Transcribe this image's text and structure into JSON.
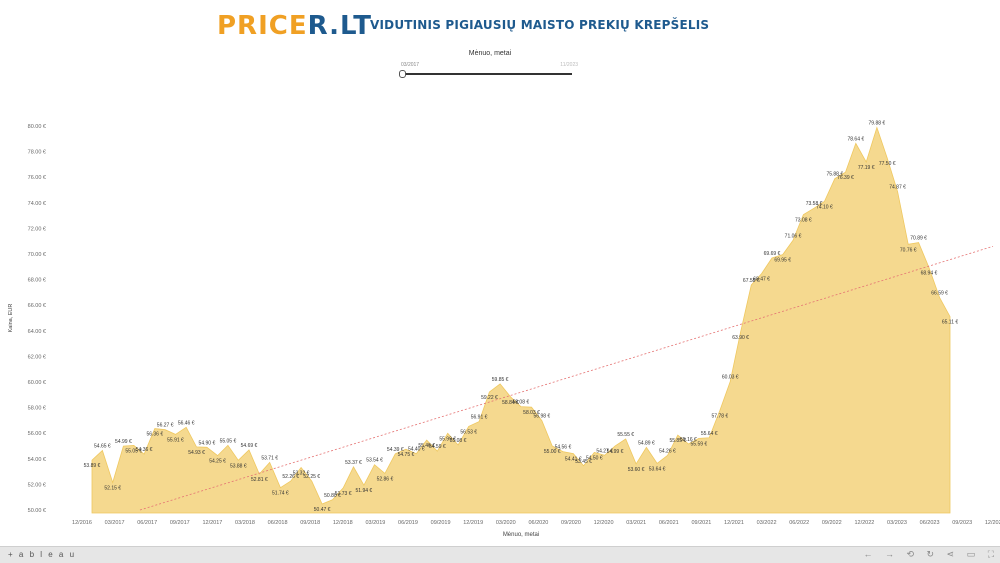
{
  "header": {
    "logo_part1": "PRICE",
    "logo_part2": "R.LT",
    "subtitle": "VIDUTINIS PIGIAUSIŲ MAISTO PREKIŲ KREPŠELIS"
  },
  "filter": {
    "title": "Mėnuo, metai",
    "start_label": "03/2017",
    "end_label": "11/2023",
    "position": 0
  },
  "footer": {
    "brand": "+ a b l e a u",
    "icons": [
      "undo-icon",
      "redo-icon",
      "revert-icon",
      "refresh-icon",
      "share-icon",
      "download-icon",
      "fullscreen-icon"
    ]
  },
  "colors": {
    "area": "#f5d98f",
    "area_line": "#efc860",
    "trend": "#e57373",
    "axis_text": "#666666"
  },
  "chart_data": {
    "type": "area",
    "xlabel": "Mėnuo, metai",
    "ylabel": "Kaina, EUR",
    "ylim": [
      50,
      81
    ],
    "yticks": [
      "50.00 €",
      "52.00 €",
      "54.00 €",
      "56.00 €",
      "58.00 €",
      "60.00 €",
      "62.00 €",
      "64.00 €",
      "66.00 €",
      "68.00 €",
      "70.00 €",
      "72.00 €",
      "74.00 €",
      "76.00 €",
      "78.00 €",
      "80.00 €"
    ],
    "xticks": [
      "12/2016",
      "03/2017",
      "06/2017",
      "09/2017",
      "12/2017",
      "03/2018",
      "06/2018",
      "09/2018",
      "12/2018",
      "03/2019",
      "06/2019",
      "09/2019",
      "12/2019",
      "03/2020",
      "06/2020",
      "09/2020",
      "12/2020",
      "03/2021",
      "06/2021",
      "09/2021",
      "12/2021",
      "03/2022",
      "06/2022",
      "09/2022",
      "12/2022",
      "03/2023",
      "06/2023",
      "09/2023",
      "12/2023"
    ],
    "trend": {
      "start": 49.5,
      "end": 70.6
    },
    "points": [
      {
        "x": 0,
        "value": 53.89,
        "label": "53.89 €"
      },
      {
        "x": 0.33,
        "value": 54.65,
        "label": "54.65 €"
      },
      {
        "x": 0.66,
        "value": 52.15,
        "label": "52.15 €"
      },
      {
        "x": 1.0,
        "value": 54.99,
        "label": "54.99 €"
      },
      {
        "x": 1.33,
        "value": 55.05,
        "label": "55.05 €"
      },
      {
        "x": 1.66,
        "value": 54.36,
        "label": "54.36 €"
      },
      {
        "x": 2.0,
        "value": 56.36,
        "label": "56.36 €"
      },
      {
        "x": 2.33,
        "value": 56.27,
        "label": "56.27 €"
      },
      {
        "x": 2.66,
        "value": 55.91,
        "label": "55.91 €"
      },
      {
        "x": 3.0,
        "value": 56.46,
        "label": "56.46 €"
      },
      {
        "x": 3.33,
        "value": 54.93,
        "label": "54.93 €"
      },
      {
        "x": 3.66,
        "value": 54.9,
        "label": "54.90 €"
      },
      {
        "x": 4.0,
        "value": 54.25,
        "label": "54.25 €"
      },
      {
        "x": 4.33,
        "value": 55.05,
        "label": "55.05 €"
      },
      {
        "x": 4.66,
        "value": 53.88,
        "label": "53.88 €"
      },
      {
        "x": 5.0,
        "value": 54.69,
        "label": "54.69 €"
      },
      {
        "x": 5.33,
        "value": 52.81,
        "label": "52.81 €"
      },
      {
        "x": 5.66,
        "value": 53.71,
        "label": "53.71 €"
      },
      {
        "x": 6.0,
        "value": 51.74,
        "label": "51.74 €"
      },
      {
        "x": 6.33,
        "value": 52.26,
        "label": "52.26 €"
      },
      {
        "x": 6.66,
        "value": 53.32,
        "label": "53.32 €"
      },
      {
        "x": 7.0,
        "value": 52.25,
        "label": "52.25 €"
      },
      {
        "x": 7.33,
        "value": 50.47,
        "label": "50.47 €"
      },
      {
        "x": 7.66,
        "value": 50.8,
        "label": "50.80 €"
      },
      {
        "x": 8.0,
        "value": 51.73,
        "label": "51.73 €"
      },
      {
        "x": 8.33,
        "value": 53.37,
        "label": "53.37 €"
      },
      {
        "x": 8.66,
        "value": 51.94,
        "label": "51.94 €"
      },
      {
        "x": 9.0,
        "value": 53.54,
        "label": "53.54 €"
      },
      {
        "x": 9.33,
        "value": 52.86,
        "label": "52.86 €"
      },
      {
        "x": 9.66,
        "value": 54.39,
        "label": "54.39 €"
      },
      {
        "x": 10.0,
        "value": 54.75,
        "label": "54.75 €"
      },
      {
        "x": 10.33,
        "value": 54.4,
        "label": "54.40 €"
      },
      {
        "x": 10.66,
        "value": 55.46,
        "label": "55.46 €"
      },
      {
        "x": 11.0,
        "value": 54.59,
        "label": "54.59 €"
      },
      {
        "x": 11.33,
        "value": 55.99,
        "label": "55.99 €"
      },
      {
        "x": 11.66,
        "value": 55.08,
        "label": "55.08 €"
      },
      {
        "x": 12.0,
        "value": 56.53,
        "label": "56.53 €"
      },
      {
        "x": 12.33,
        "value": 56.91,
        "label": "56.91 €"
      },
      {
        "x": 12.66,
        "value": 59.22,
        "label": "59.22 €"
      },
      {
        "x": 13.0,
        "value": 59.85,
        "label": "59.85 €"
      },
      {
        "x": 13.33,
        "value": 58.84,
        "label": "58.84 €"
      },
      {
        "x": 13.66,
        "value": 58.08,
        "label": "58.08 €"
      },
      {
        "x": 14.0,
        "value": 58.03,
        "label": "58.03 €"
      },
      {
        "x": 14.33,
        "value": 56.98,
        "label": "56.98 €"
      },
      {
        "x": 14.66,
        "value": 55.0,
        "label": "55.00 €"
      },
      {
        "x": 15.0,
        "value": 54.56,
        "label": "54.56 €"
      },
      {
        "x": 15.33,
        "value": 54.41,
        "label": "54.41 €"
      },
      {
        "x": 15.66,
        "value": 53.45,
        "label": "53.45 €"
      },
      {
        "x": 16.0,
        "value": 54.5,
        "label": "54.50 €"
      },
      {
        "x": 16.33,
        "value": 54.27,
        "label": "54.27 €"
      },
      {
        "x": 16.66,
        "value": 54.99,
        "label": "54.99 €"
      },
      {
        "x": 17.0,
        "value": 55.55,
        "label": "55.55 €"
      },
      {
        "x": 17.33,
        "value": 53.6,
        "label": "53.60 €"
      },
      {
        "x": 17.66,
        "value": 54.89,
        "label": "54.89 €"
      },
      {
        "x": 18.0,
        "value": 53.64,
        "label": "53.64 €"
      },
      {
        "x": 18.33,
        "value": 54.26,
        "label": "54.26 €"
      },
      {
        "x": 18.66,
        "value": 55.85,
        "label": "55.85 €"
      },
      {
        "x": 19.0,
        "value": 55.16,
        "label": "55.16 €"
      },
      {
        "x": 19.33,
        "value": 55.59,
        "label": "55.59 €"
      },
      {
        "x": 19.66,
        "value": 55.64,
        "label": "55.64 €"
      },
      {
        "x": 20.0,
        "value": 57.78,
        "label": "57.78 €"
      },
      {
        "x": 20.33,
        "value": 60.03,
        "label": "60.03 €"
      },
      {
        "x": 20.66,
        "value": 63.9,
        "label": "63.90 €"
      },
      {
        "x": 21.0,
        "value": 67.58,
        "label": "67.58 €"
      },
      {
        "x": 21.33,
        "value": 68.47,
        "label": "68.47 €"
      },
      {
        "x": 21.66,
        "value": 69.69,
        "label": "69.69 €"
      },
      {
        "x": 22.0,
        "value": 69.95,
        "label": "69.95 €"
      },
      {
        "x": 22.33,
        "value": 71.06,
        "label": "71.06 €"
      },
      {
        "x": 22.66,
        "value": 73.08,
        "label": "73.08 €"
      },
      {
        "x": 23.0,
        "value": 73.58,
        "label": "73.58 €"
      },
      {
        "x": 23.33,
        "value": 74.1,
        "label": "74.10 €"
      },
      {
        "x": 23.66,
        "value": 75.88,
        "label": "75.88 €"
      },
      {
        "x": 24.0,
        "value": 76.39,
        "label": "76.39 €"
      },
      {
        "x": 24.33,
        "value": 78.64,
        "label": "78.64 €"
      },
      {
        "x": 24.66,
        "value": 77.19,
        "label": "77.19 €"
      },
      {
        "x": 25.0,
        "value": 79.88,
        "label": "79.88 €"
      },
      {
        "x": 25.33,
        "value": 77.5,
        "label": "77.50 €"
      },
      {
        "x": 25.66,
        "value": 74.87,
        "label": "74.87 €"
      },
      {
        "x": 26.0,
        "value": 70.76,
        "label": "70.76 €"
      },
      {
        "x": 26.33,
        "value": 70.89,
        "label": "70.89 €"
      },
      {
        "x": 26.66,
        "value": 68.94,
        "label": "68.94 €"
      },
      {
        "x": 27.0,
        "value": 66.59,
        "label": "66.59 €"
      },
      {
        "x": 27.33,
        "value": 65.11,
        "label": "65.11 €"
      }
    ]
  }
}
